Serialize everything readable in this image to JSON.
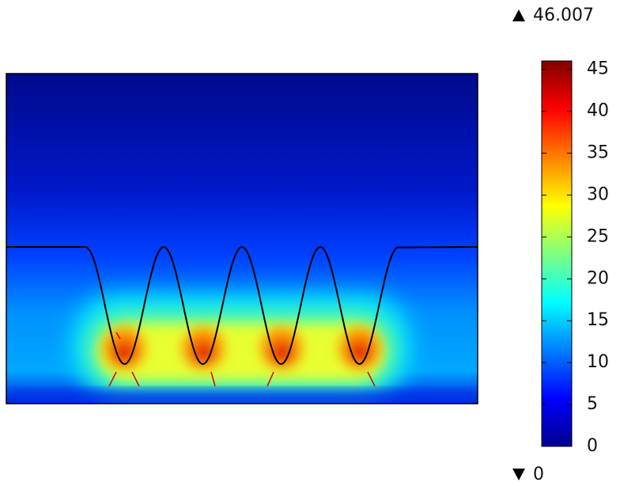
{
  "chart_data": {
    "type": "surface",
    "colormap": "jet",
    "max": 46.007,
    "min": 0,
    "ylim": [
      0,
      46.007
    ],
    "yticks": [
      0,
      5,
      10,
      15,
      20,
      25,
      30,
      35,
      40,
      45
    ]
  }
}
